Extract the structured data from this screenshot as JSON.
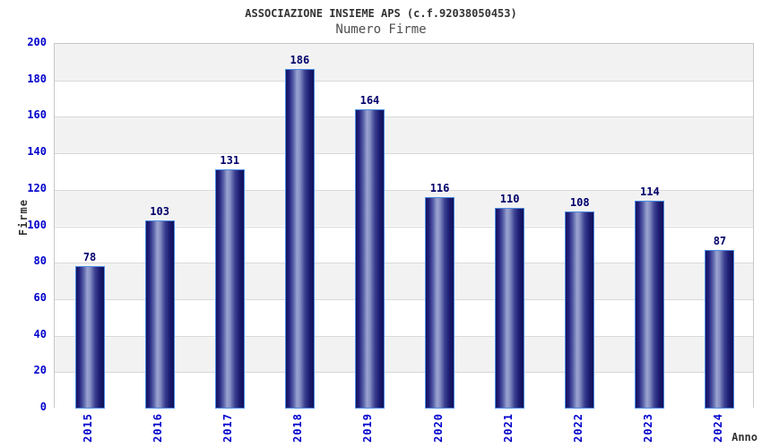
{
  "chart_data": {
    "type": "bar",
    "title": "ASSOCIAZIONE INSIEME APS (c.f.92038050453)",
    "subtitle": "Numero Firme",
    "categories": [
      "2015",
      "2016",
      "2017",
      "2018",
      "2019",
      "2020",
      "2021",
      "2022",
      "2023",
      "2024"
    ],
    "values": [
      78,
      103,
      131,
      186,
      164,
      116,
      110,
      108,
      114,
      87
    ],
    "xlabel": "Anno",
    "ylabel": "Firme",
    "ylim": [
      0,
      200
    ],
    "yticks": [
      0,
      20,
      40,
      60,
      80,
      100,
      120,
      140,
      160,
      180,
      200
    ],
    "grid": "horizontal",
    "legend": "none",
    "band_pattern": "alternating gray/white horizontal bands"
  },
  "colors": {
    "tick_label_blue": "#0000cc",
    "value_label_navy": "#00006a",
    "title_color": "#333333",
    "subtitle_color": "#4f4f4f",
    "band_gray": "#f2f2f2",
    "gridline": "#d9d9d9",
    "plot_border": "#c8c8c8",
    "bar_border_blue": "#4a8ae0",
    "bar_dark_navy": "#14145f",
    "bar_highlight": "#9aa3d0"
  }
}
